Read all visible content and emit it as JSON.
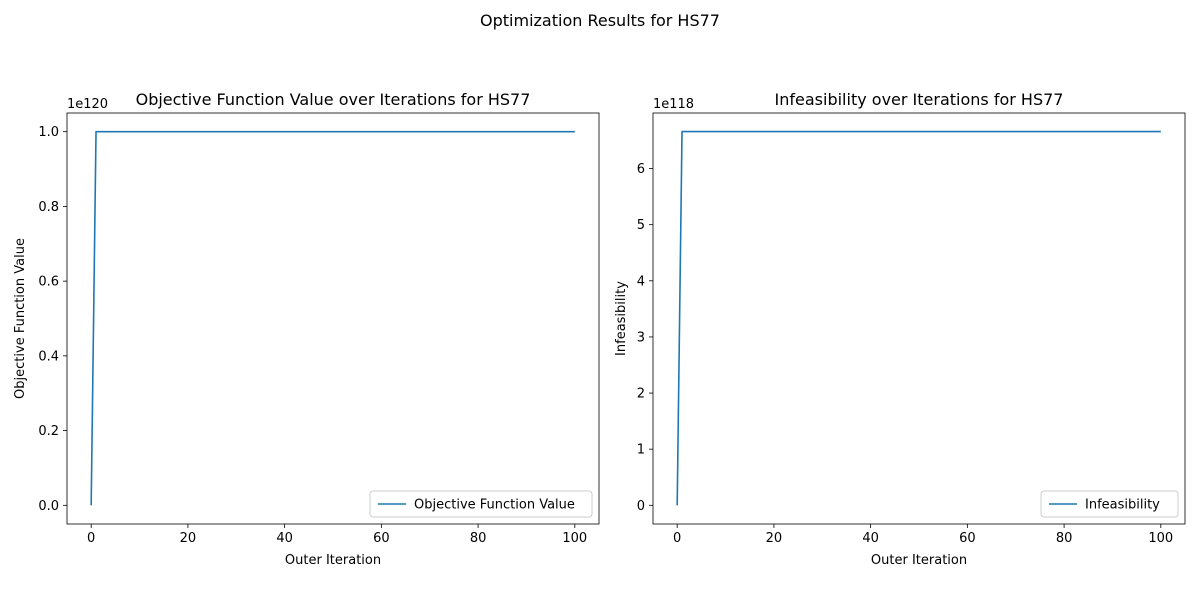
{
  "suptitle": "Optimization Results for HS77",
  "chart_data": [
    {
      "type": "line",
      "title": "Objective Function Value over Iterations for HS77",
      "xlabel": "Outer Iteration",
      "ylabel": "Objective Function Value",
      "offset_text": "1e120",
      "scale": 1e+120,
      "xlim": [
        -5,
        105
      ],
      "ylim": [
        -5e+118,
        1.05e+120
      ],
      "xticks": [
        0,
        20,
        40,
        60,
        80,
        100
      ],
      "xtick_labels": [
        "0",
        "20",
        "40",
        "60",
        "80",
        "100"
      ],
      "yticks": [
        0,
        2e+119,
        4e+119,
        6e+119,
        8e+119,
        1e+120
      ],
      "ytick_labels": [
        "0.0",
        "0.2",
        "0.4",
        "0.6",
        "0.8",
        "1.0"
      ],
      "legend": "lower right",
      "grid": false,
      "series": [
        {
          "name": "Objective Function Value",
          "color": "#1f77b4",
          "x": [
            0,
            1,
            100
          ],
          "y": [
            0,
            1e+120,
            1e+120
          ]
        }
      ]
    },
    {
      "type": "line",
      "title": "Infeasibility over Iterations for HS77",
      "xlabel": "Outer Iteration",
      "ylabel": "Infeasibility",
      "offset_text": "1e118",
      "scale": 1e+118,
      "xlim": [
        -5,
        105
      ],
      "ylim": [
        -3.33e+117,
        6.99e+118
      ],
      "xticks": [
        0,
        20,
        40,
        60,
        80,
        100
      ],
      "xtick_labels": [
        "0",
        "20",
        "40",
        "60",
        "80",
        "100"
      ],
      "yticks": [
        0,
        1e+118,
        2e+118,
        3e+118,
        4e+118,
        5e+118,
        6e+118
      ],
      "ytick_labels": [
        "0",
        "1",
        "2",
        "3",
        "4",
        "5",
        "6"
      ],
      "legend": "lower right",
      "grid": false,
      "series": [
        {
          "name": "Infeasibility",
          "color": "#1f77b4",
          "x": [
            0,
            1,
            100
          ],
          "y": [
            0,
            6.66e+118,
            6.66e+118
          ]
        }
      ]
    }
  ]
}
